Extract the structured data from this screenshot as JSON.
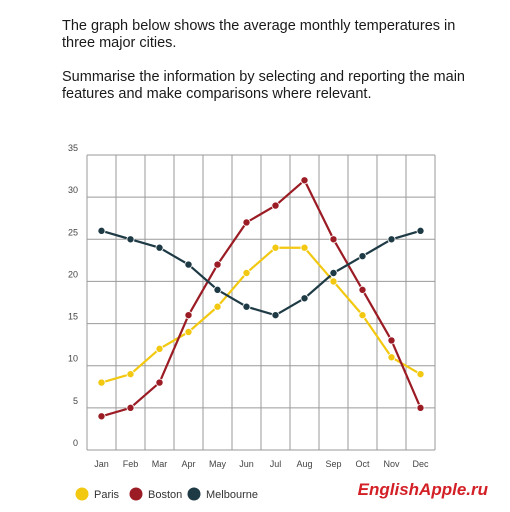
{
  "prompt": {
    "line1": "The graph below shows the average monthly temperatures in three major cities.",
    "line2": "Summarise the information by selecting and reporting the main features and make comparisons where relevant."
  },
  "brand": "EnglishApple.ru",
  "chart_data": {
    "type": "line",
    "title": "",
    "xlabel": "",
    "ylabel": "",
    "categories": [
      "Jan",
      "Feb",
      "Mar",
      "Apr",
      "May",
      "Jun",
      "Jul",
      "Aug",
      "Sep",
      "Oct",
      "Nov",
      "Dec"
    ],
    "ylim": [
      0,
      35
    ],
    "yticks": [
      0,
      5,
      10,
      15,
      20,
      25,
      30,
      35
    ],
    "grid": true,
    "legend_position": "bottom-left",
    "series": [
      {
        "name": "Paris",
        "color": "#f2c811",
        "values": [
          8,
          9,
          12,
          14,
          17,
          21,
          24,
          24,
          20,
          16,
          11,
          9
        ]
      },
      {
        "name": "Boston",
        "color": "#9b1c24",
        "values": [
          4,
          5,
          8,
          16,
          22,
          27,
          29,
          32,
          25,
          19,
          13,
          5
        ]
      },
      {
        "name": "Melbourne",
        "color": "#1e3a45",
        "values": [
          26,
          25,
          24,
          22,
          19,
          17,
          16,
          18,
          21,
          23,
          25,
          26
        ]
      }
    ]
  }
}
